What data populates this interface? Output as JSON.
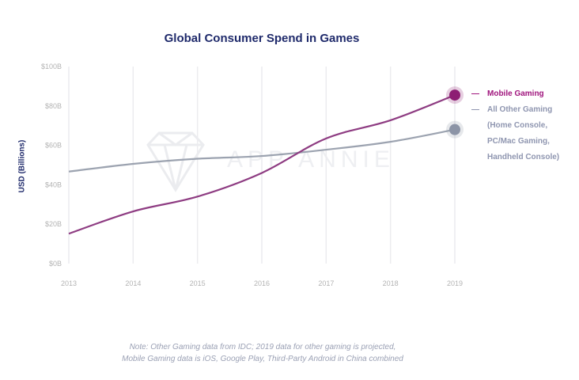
{
  "chart_data": {
    "type": "line",
    "title": "Global Consumer Spend in Games",
    "xlabel": "",
    "ylabel": "USD (Billions)",
    "x": [
      "2013",
      "2014",
      "2015",
      "2016",
      "2017",
      "2018",
      "2019"
    ],
    "yticks": [
      "$0B",
      "$20B",
      "$40B",
      "$60B",
      "$80B",
      "$100B"
    ],
    "ylim": [
      0,
      100
    ],
    "grid": "vertical",
    "legend_position": "right",
    "series": [
      {
        "name": "Mobile Gaming",
        "color": "#8e3c82",
        "marker_color": "#8d1e73",
        "values": [
          15.2,
          26.5,
          34.0,
          46.0,
          63.5,
          72.7,
          85.5
        ]
      },
      {
        "name": "All Other Gaming (Home Console, PC/Mac Gaming, Handheld Console)",
        "color": "#9ca3b0",
        "marker_color": "#8c94a6",
        "values": [
          46.7,
          50.6,
          53.2,
          54.6,
          57.8,
          61.8,
          68.0
        ]
      }
    ],
    "watermark": "APP ANNIE"
  },
  "legend": {
    "mobile": {
      "label": "Mobile Gaming",
      "color": "#a0157d"
    },
    "other": {
      "lines": [
        "All Other Gaming",
        "(Home Console,",
        "PC/Mac Gaming,",
        "Handheld Console)"
      ],
      "color": "#8f96b0"
    }
  },
  "note": {
    "line1": "Note: Other Gaming data from IDC; 2019 data for other gaming is projected,",
    "line2": "Mobile Gaming data is iOS, Google Play, Third-Party Android in China combined"
  }
}
